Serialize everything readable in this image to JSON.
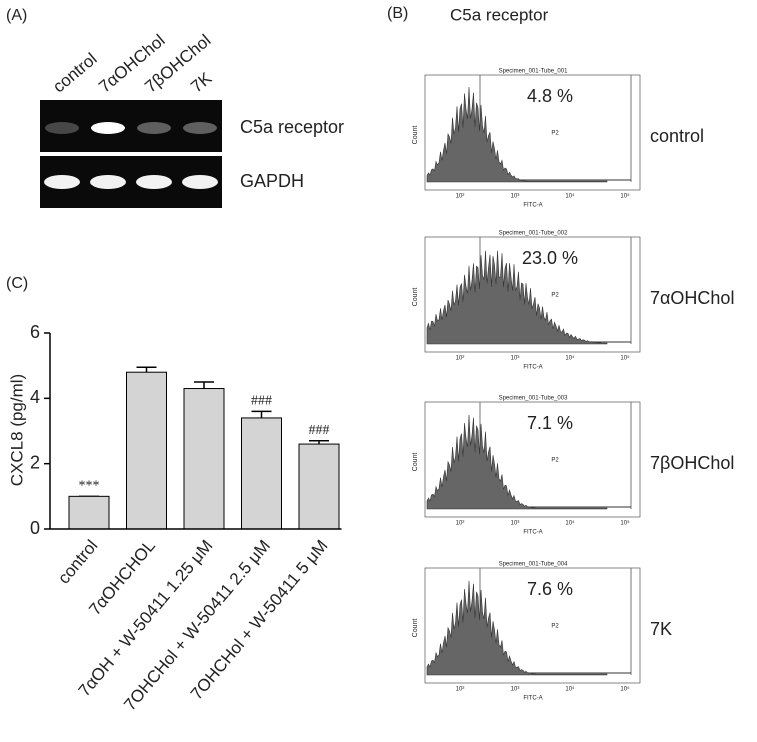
{
  "panel_a": {
    "label": "(A)",
    "lanes": [
      "control",
      "7αOHChol",
      "7βOHChol",
      "7K"
    ],
    "bands": [
      "C5a receptor",
      "GAPDH"
    ]
  },
  "panel_b": {
    "label": "(B)",
    "title": "C5a receptor",
    "y_axis": "Count",
    "x_axis": "FITC-A",
    "gate": "P2",
    "x_ticks": [
      "10²",
      "10³",
      "10⁴",
      "10⁵"
    ],
    "plots": [
      {
        "specimen": "Specimen_001-Tube_001",
        "percent": "4.8 %",
        "sample": "control"
      },
      {
        "specimen": "Specimen_001-Tube_002",
        "percent": "23.0 %",
        "sample": "7αOHChol"
      },
      {
        "specimen": "Specimen_001-Tube_003",
        "percent": "7.1 %",
        "sample": "7βOHChol"
      },
      {
        "specimen": "Specimen_001-Tube_004",
        "percent": "7.6 %",
        "sample": "7K"
      }
    ]
  },
  "chart_data": {
    "type": "bar",
    "label": "(C)",
    "y_label": "CXCL8 (pg/ml)",
    "categories": [
      "control",
      "7αOHCHOL",
      "7αOH + W-50411 1.25  μM",
      "7OHCHol + W-50411 2.5 μM",
      "7OHCHol + W-50411 5 μM"
    ],
    "values": [
      1.0,
      4.8,
      4.3,
      3.4,
      2.6
    ],
    "errors": [
      0,
      0.15,
      0.2,
      0.2,
      0.1
    ],
    "significance": [
      "***",
      null,
      null,
      "###",
      "###"
    ],
    "color": "#d4d4d4",
    "ylim": [
      0,
      6
    ],
    "yticks": [
      0,
      2,
      4,
      6
    ]
  }
}
